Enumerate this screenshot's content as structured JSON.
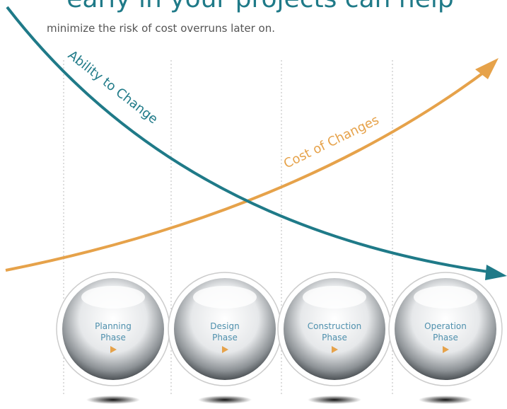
{
  "header": {
    "title": "early in your projects can help",
    "subtitle": "minimize the risk of cost overruns later on."
  },
  "curves": {
    "ability": "Ability to Change",
    "cost": "Cost of Changes"
  },
  "phases": [
    {
      "lines": [
        "Planning",
        "Phase"
      ]
    },
    {
      "lines": [
        "Design",
        "Phase"
      ]
    },
    {
      "lines": [
        "Construction",
        "Phase"
      ]
    },
    {
      "lines": [
        "Operation",
        "Phase"
      ]
    }
  ]
}
